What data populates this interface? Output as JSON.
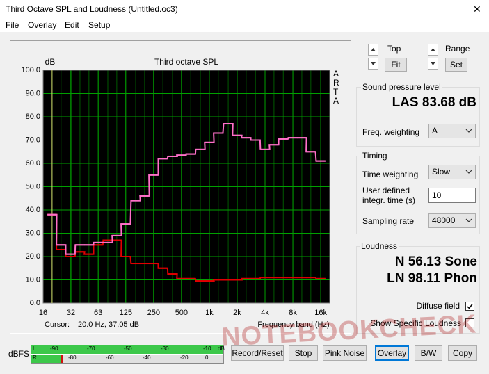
{
  "window": {
    "title": "Third Octave SPL and Loudness (Untitled.oc3)",
    "close": "✕"
  },
  "menu": [
    "File",
    "Overlay",
    "Edit",
    "Setup"
  ],
  "chart_data": {
    "type": "step",
    "title": "Third octave SPL",
    "ylabel": "dB",
    "xlabel": "Frequency band (Hz)",
    "side_label": "ARTA",
    "xscale": "log",
    "xlim": [
      16,
      20000
    ],
    "ylim": [
      0,
      100
    ],
    "xticks": [
      16,
      32,
      63,
      125,
      250,
      500,
      {
        "value": 1000,
        "label": "1k"
      },
      {
        "value": 2000,
        "label": "2k"
      },
      {
        "value": 4000,
        "label": "4k"
      },
      {
        "value": 8000,
        "label": "8k"
      },
      {
        "value": 16000,
        "label": "16k"
      }
    ],
    "yticks": [
      {
        "value": 0,
        "label": "0.0"
      },
      {
        "value": 10,
        "label": "10.0"
      },
      {
        "value": 20,
        "label": "20.0"
      },
      {
        "value": 30,
        "label": "30.0"
      },
      {
        "value": 40,
        "label": "40.0"
      },
      {
        "value": 50,
        "label": "50.0"
      },
      {
        "value": 60,
        "label": "60.0"
      },
      {
        "value": 70,
        "label": "70.0"
      },
      {
        "value": 80,
        "label": "80.0"
      },
      {
        "value": 90,
        "label": "90.0"
      },
      {
        "value": 100,
        "label": "100.0"
      }
    ],
    "grid": true,
    "x": [
      20,
      25,
      31.5,
      40,
      50,
      63,
      80,
      100,
      125,
      160,
      200,
      250,
      315,
      400,
      500,
      630,
      800,
      1000,
      1250,
      1600,
      2000,
      2500,
      3150,
      4000,
      5000,
      6300,
      8000,
      10000,
      12500,
      16000
    ],
    "series": [
      {
        "color": "#ff70c8",
        "values": [
          38,
          25,
          21,
          25,
          25,
          26,
          26,
          29,
          34,
          44,
          46,
          55,
          62,
          63,
          63.5,
          64,
          66,
          69,
          73,
          77,
          72,
          71,
          70,
          66,
          68,
          70.5,
          71,
          71,
          65,
          61
        ]
      },
      {
        "color": "#e00000",
        "values": [
          38,
          23,
          20,
          22,
          21,
          25,
          27,
          27,
          20,
          17,
          17,
          17,
          15,
          12.5,
          10.5,
          10.5,
          9.5,
          9.5,
          10,
          10,
          10,
          10.5,
          10.5,
          11,
          11,
          11,
          11,
          11,
          11,
          10.5
        ]
      }
    ],
    "cursor": {
      "label": "Cursor:",
      "value": "20.0 Hz, 37.05 dB",
      "x": 20
    }
  },
  "controls": {
    "top": {
      "label": "Top",
      "button": "Fit"
    },
    "range": {
      "label": "Range",
      "button": "Set"
    }
  },
  "spl": {
    "group": "Sound pressure level",
    "reading": "LAS 83.68 dB",
    "freq_weighting": {
      "label": "Freq. weighting",
      "value": "A"
    }
  },
  "timing": {
    "group": "Timing",
    "time_weighting": {
      "label": "Time weighting",
      "value": "Slow"
    },
    "integration": {
      "label": [
        "User defined",
        "integr. time (s)"
      ],
      "value": "10"
    },
    "sampling_rate": {
      "label": "Sampling rate",
      "value": "48000"
    }
  },
  "loudness": {
    "group": "Loudness",
    "n": "N 56.13 Sone",
    "ln": "LN 98.11 Phon",
    "diffuse": {
      "label": "Diffuse field",
      "checked": true
    },
    "specific": {
      "label": "Show Specific Loudness",
      "checked": false
    }
  },
  "meter": {
    "label": "dBFS",
    "left": {
      "channel": "L",
      "scale": [
        "-90",
        "-70",
        "-50",
        "-30",
        "-10",
        "dB"
      ]
    },
    "right": {
      "channel": "R",
      "scale": [
        "-80",
        "-60",
        "-40",
        "-20",
        "0"
      ]
    }
  },
  "buttons": [
    "Record/Reset",
    "Stop",
    "Pink Noise",
    "Overlay",
    "B/W",
    "Copy"
  ],
  "watermark": "NOTEBOOKCHECK"
}
